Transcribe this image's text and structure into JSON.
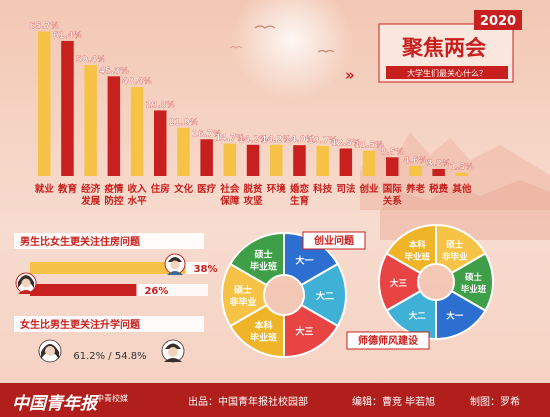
{
  "year_badge": "2020",
  "headline": "聚焦两会",
  "subheadline": "大学生们最关心什么？",
  "chevrons": "»",
  "chart_data": {
    "type": "bar",
    "categories": [
      "就业",
      "教育",
      "经济发展",
      "疫情防控",
      "收入水平",
      "住房",
      "文化",
      "医疗",
      "社会保障",
      "脱贫攻坚",
      "环境",
      "婚恋生育",
      "科技",
      "司法",
      "创业",
      "国际关系",
      "养老",
      "税费",
      "其他"
    ],
    "category_lines": [
      [
        "就业"
      ],
      [
        "教育"
      ],
      [
        "经济",
        "发展"
      ],
      [
        "疫情",
        "防控"
      ],
      [
        "收入",
        "水平"
      ],
      [
        "住房"
      ],
      [
        "文化"
      ],
      [
        "医疗"
      ],
      [
        "社会",
        "保障"
      ],
      [
        "脱贫",
        "攻坚"
      ],
      [
        "环境"
      ],
      [
        "婚恋",
        "生育"
      ],
      [
        "科技"
      ],
      [
        "司法"
      ],
      [
        "创业"
      ],
      [
        "国际",
        "关系"
      ],
      [
        "养老"
      ],
      [
        "税费"
      ],
      [
        "其他"
      ]
    ],
    "values": [
      65.7,
      61.4,
      50.4,
      45.3,
      40.4,
      29.8,
      21.9,
      16.7,
      14.7,
      14.2,
      14.2,
      14.0,
      13.7,
      12.5,
      11.5,
      8.5,
      4.6,
      3.2,
      1.5
    ],
    "labels": [
      "65.7%",
      "61.4%",
      "50.4%",
      "45.3%",
      "40.4%",
      "29.8%",
      "21.9%",
      "16.7%",
      "14.7%",
      "14.2%",
      "14.2%",
      "14.0%",
      "13.7%",
      "12.5%",
      "11.5%",
      "8.5%",
      "4.6%",
      "3.2%",
      "1.5%"
    ],
    "colors": [
      "#f7c346",
      "#c8201e",
      "#f7c346",
      "#c8201e",
      "#f7c346",
      "#c8201e",
      "#f7c346",
      "#c8201e",
      "#f7c346",
      "#c8201e",
      "#f7c346",
      "#c8201e",
      "#f7c346",
      "#c8201e",
      "#f7c346",
      "#c8201e",
      "#f7c346",
      "#c8201e",
      "#f7c346"
    ],
    "ylim": [
      0,
      70
    ]
  },
  "housing": {
    "title": "男生比女生更关注住房问题",
    "male_value": 38,
    "male_label": "38%",
    "female_value": 26,
    "female_label": "26%"
  },
  "further_study": {
    "title": "女生比男生更关注升学问题",
    "value_label": "61.2% / 54.8%"
  },
  "entrepreneurship": {
    "title": "创业问题",
    "segments": [
      "大一",
      "大二",
      "大三",
      "本科毕业班",
      "硕士非毕业",
      "硕士毕业班"
    ],
    "colors": [
      "#2d6fd1",
      "#3fb1d6",
      "#e84444",
      "#f0b429",
      "#f7c346",
      "#3f9f48"
    ]
  },
  "teacher_ethics": {
    "title": "师德师风建设",
    "segments": [
      "大一",
      "大二",
      "大三",
      "本科毕业班",
      "硕士非毕业",
      "硕士毕业班"
    ],
    "colors": [
      "#2d6fd1",
      "#3fb1d6",
      "#e84444",
      "#f0b429",
      "#f7c346",
      "#3f9f48"
    ]
  },
  "footer": {
    "logo_text": "中国青年报",
    "logo_small": "中青校媒",
    "publisher": "出品：中国青年报社校园部",
    "editors": "编辑：曹竞  毕若旭",
    "design": "制图：罗希"
  }
}
